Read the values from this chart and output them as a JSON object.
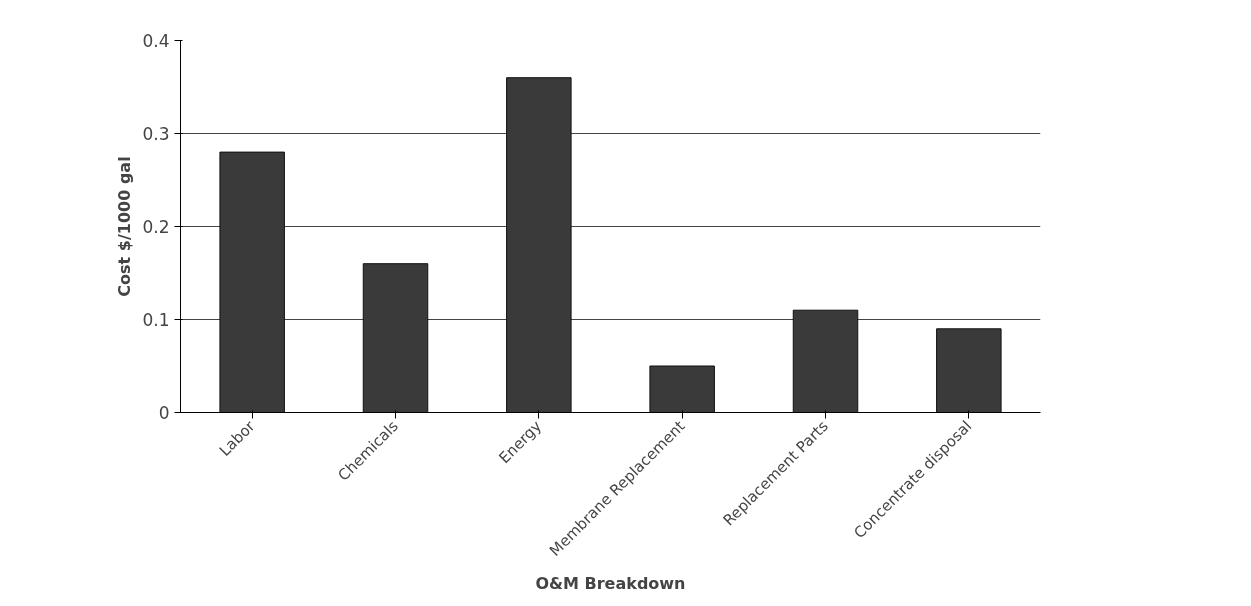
{
  "chart_data": {
    "type": "bar",
    "xlabel": "O&M Breakdown",
    "ylabel": "Cost $/1000 gal",
    "categories": [
      "Labor",
      "Chemicals",
      "Energy",
      "Membrane Replacement",
      "Replacement Parts",
      "Concentrate disposal"
    ],
    "values": [
      0.28,
      0.16,
      0.36,
      0.05,
      0.11,
      0.09
    ],
    "color": "#3a3a3a",
    "ylim": [
      0,
      0.4
    ],
    "yticks": [
      0,
      0.1,
      0.2,
      0.3,
      0.4
    ],
    "grid": "y"
  }
}
